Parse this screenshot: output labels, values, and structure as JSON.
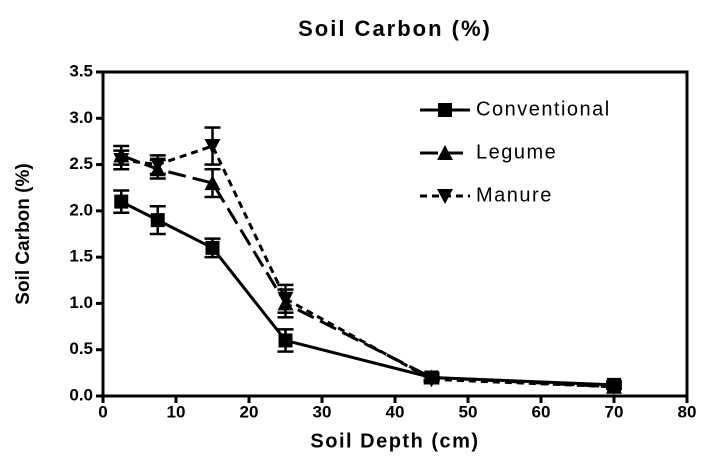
{
  "chart_data": {
    "type": "line",
    "title": "Soil Carbon (%)",
    "xlabel": "Soil Depth (cm)",
    "ylabel": "Soil Carbon (%)",
    "x": [
      2.5,
      7.5,
      15,
      25,
      45,
      70
    ],
    "series": [
      {
        "name": "Conventional",
        "color": "#000000",
        "line_style": "solid",
        "marker": "square",
        "values": [
          2.1,
          1.9,
          1.6,
          0.6,
          0.2,
          0.12
        ],
        "errors": [
          0.12,
          0.15,
          0.1,
          0.12,
          0.05,
          0.03
        ]
      },
      {
        "name": "Legume",
        "color": "#000000",
        "line_style": "dashed",
        "marker": "triangle-up",
        "values": [
          2.6,
          2.45,
          2.3,
          1.0,
          0.2,
          0.1
        ],
        "errors": [
          0.1,
          0.1,
          0.15,
          0.15,
          0.03,
          0.02
        ]
      },
      {
        "name": "Manure",
        "color": "#000000",
        "line_style": "dotted",
        "marker": "triangle-down",
        "values": [
          2.55,
          2.5,
          2.7,
          1.05,
          0.18,
          0.1
        ],
        "errors": [
          0.1,
          0.1,
          0.2,
          0.15,
          0.03,
          0.02
        ]
      }
    ],
    "xlim": [
      0,
      80
    ],
    "xticks": [
      0,
      10,
      20,
      30,
      40,
      50,
      60,
      70,
      80
    ],
    "ylim": [
      0,
      3.5
    ],
    "yticks": [
      {
        "value": 0,
        "label": "0.0"
      },
      0.5,
      {
        "value": 1,
        "label": "1.0"
      },
      1.5,
      {
        "value": 2,
        "label": "2.0"
      },
      2.5,
      {
        "value": 3,
        "label": "3.0"
      },
      3.5
    ],
    "legend": "upper right"
  }
}
